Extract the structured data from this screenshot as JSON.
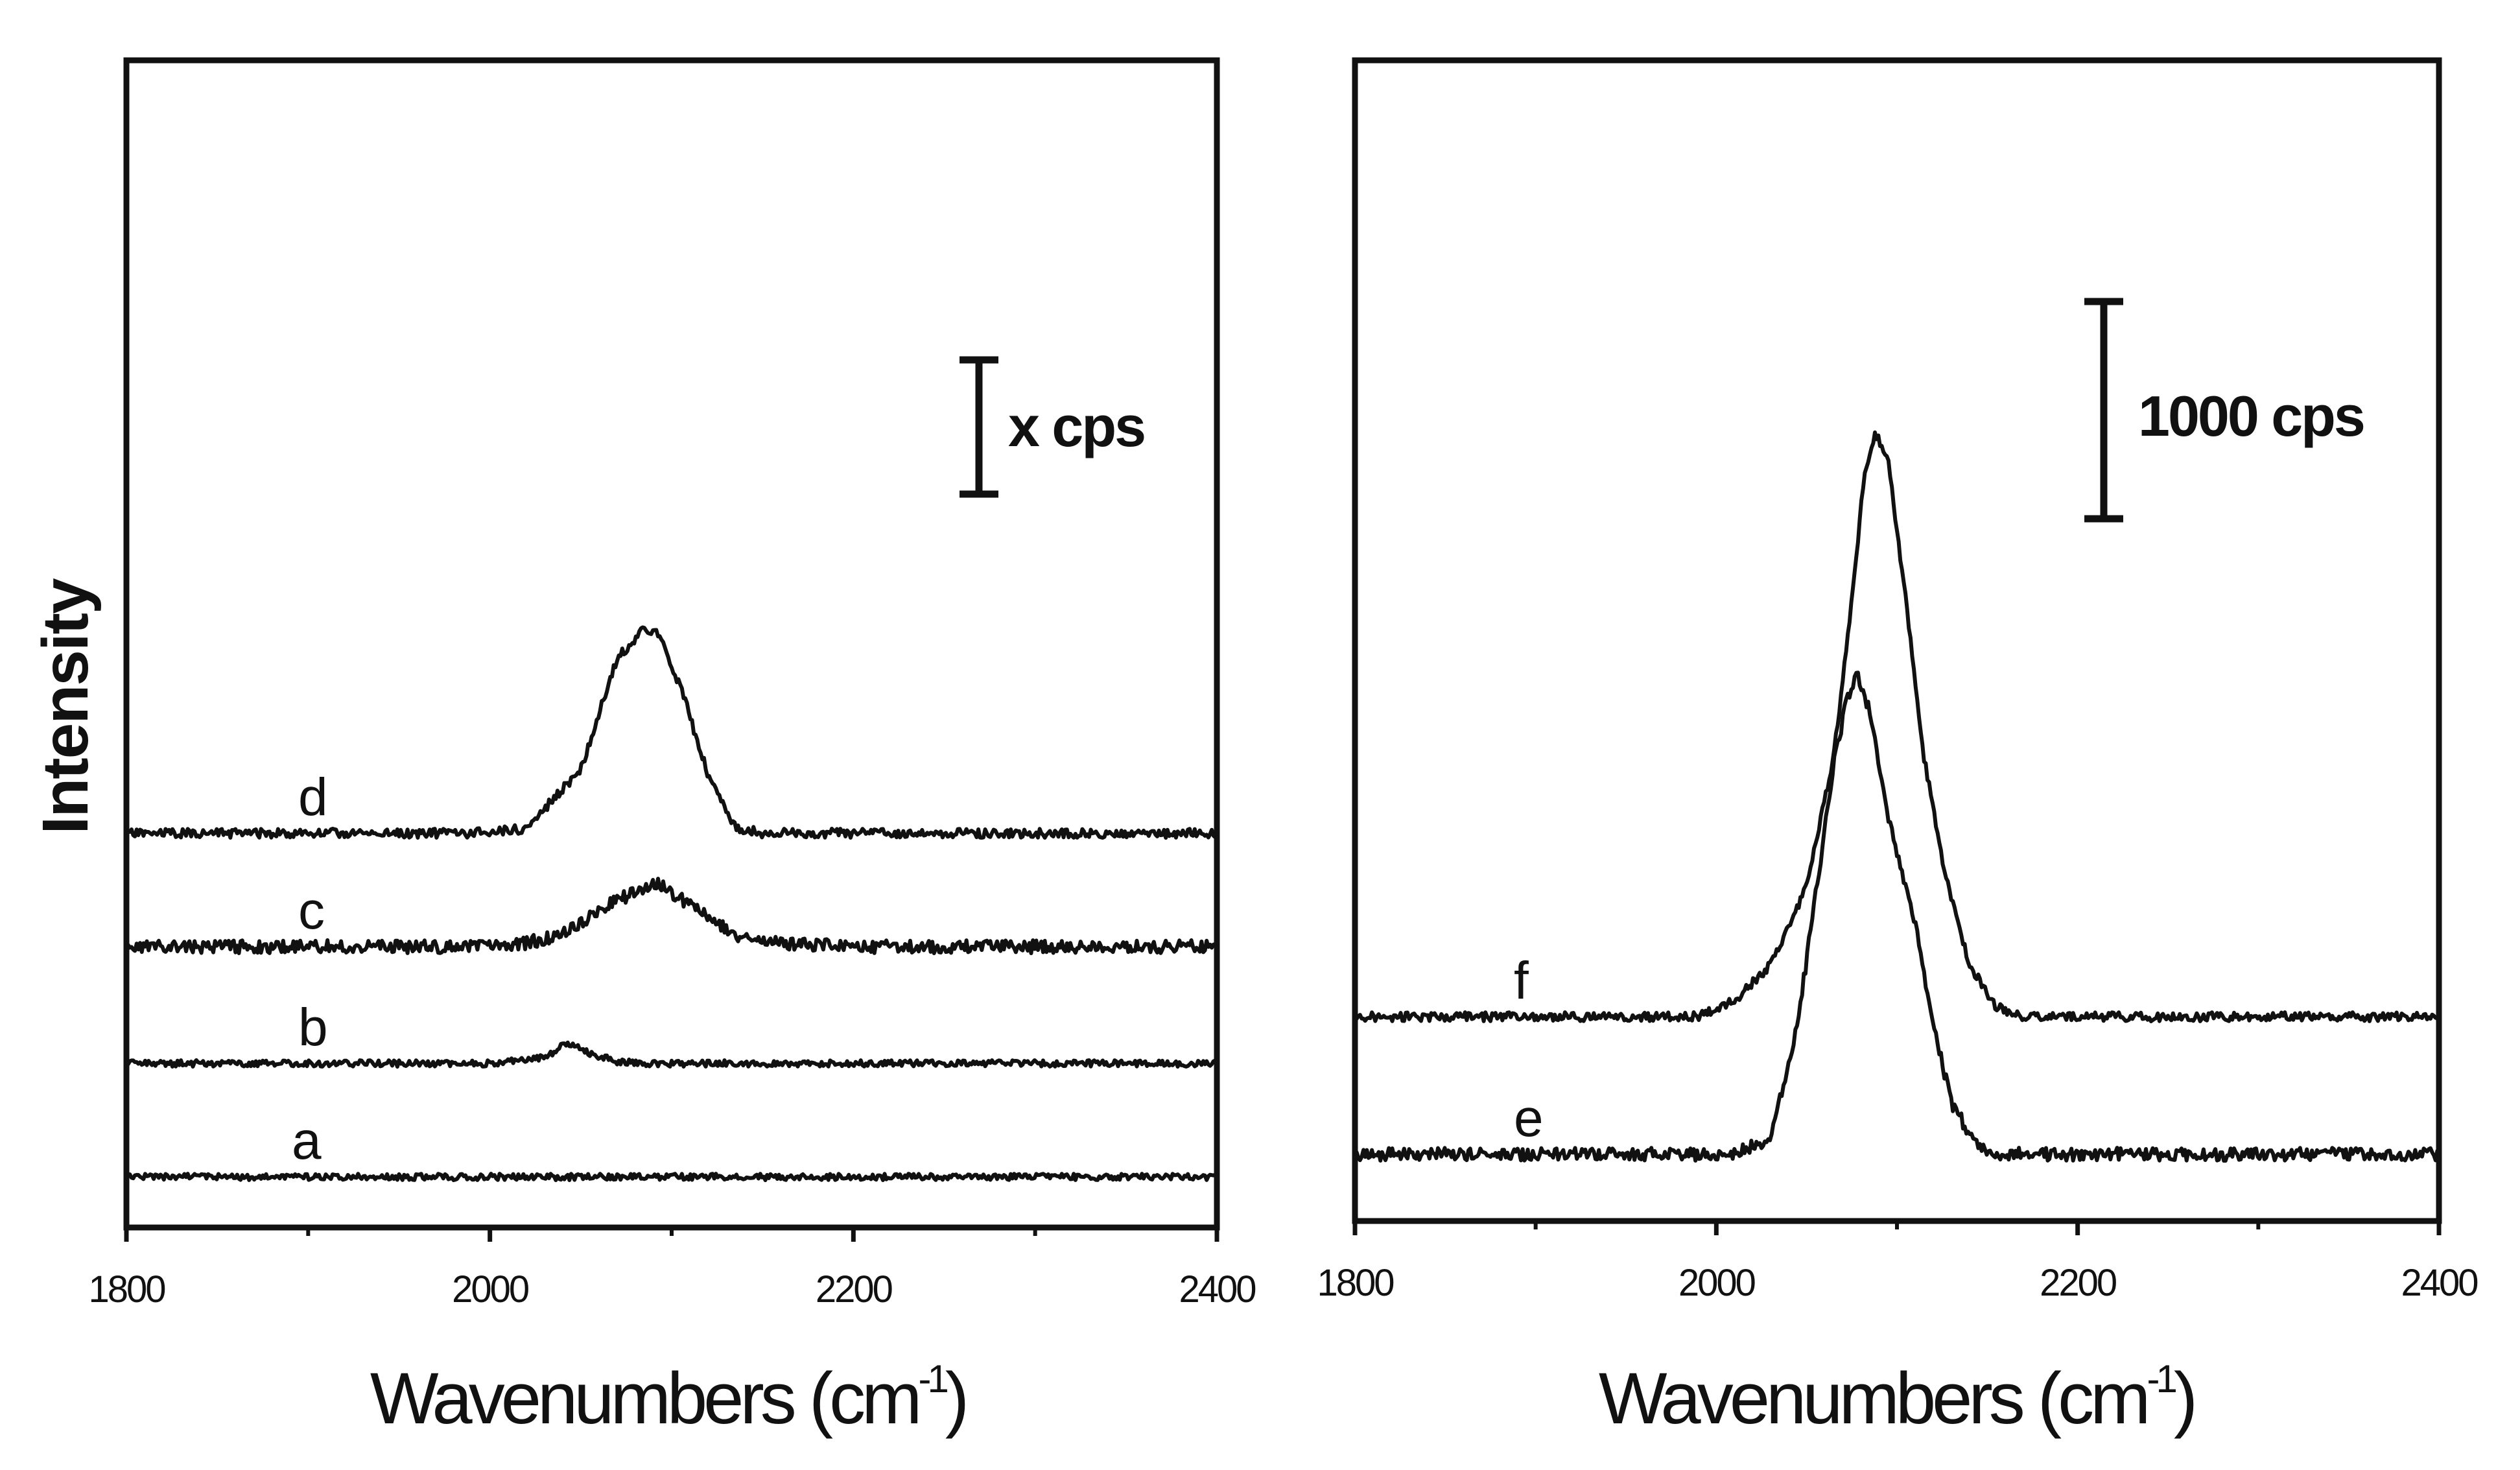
{
  "chart_data": [
    {
      "type": "line",
      "panel": "left",
      "xlabel": "Wavenumbers (cm-1)",
      "xlabel_parts": {
        "main": "Wavenumbers (cm",
        "sup": "-1",
        "close": ")"
      },
      "ylabel": "Intensity",
      "xlim": [
        1800,
        2400
      ],
      "xticks": [
        "1800",
        "2000",
        "2200",
        "2400"
      ],
      "scale_bar": {
        "label": "x cps"
      },
      "series": [
        {
          "name": "d",
          "points": [
            [
              1800,
              0
            ],
            [
              1990,
              0
            ],
            [
              2020,
              8
            ],
            [
              2050,
              110
            ],
            [
              2070,
              300
            ],
            [
              2085,
              350
            ],
            [
              2092,
              345
            ],
            [
              2105,
              250
            ],
            [
              2120,
              100
            ],
            [
              2135,
              10
            ],
            [
              2150,
              0
            ],
            [
              2400,
              0
            ]
          ]
        },
        {
          "name": "c",
          "points": [
            [
              1800,
              0
            ],
            [
              2010,
              0
            ],
            [
              2040,
              20
            ],
            [
              2070,
              80
            ],
            [
              2092,
              110
            ],
            [
              2110,
              70
            ],
            [
              2135,
              20
            ],
            [
              2160,
              5
            ],
            [
              2200,
              0
            ],
            [
              2400,
              0
            ]
          ]
        },
        {
          "name": "b",
          "points": [
            [
              1800,
              0
            ],
            [
              2000,
              0
            ],
            [
              2030,
              10
            ],
            [
              2042,
              34
            ],
            [
              2055,
              18
            ],
            [
              2070,
              3
            ],
            [
              2085,
              0
            ],
            [
              2400,
              0
            ]
          ]
        },
        {
          "name": "a",
          "points": [
            [
              1800,
              0
            ],
            [
              2400,
              0
            ]
          ]
        }
      ]
    },
    {
      "type": "line",
      "panel": "right",
      "xlabel": "Wavenumbers (cm-1)",
      "xlabel_parts": {
        "main": "Wavenumbers (cm",
        "sup": "-1",
        "close": ")"
      },
      "xlim": [
        1800,
        2400
      ],
      "xticks": [
        "1800",
        "2000",
        "2200",
        "2400"
      ],
      "scale_bar": {
        "label": "1000 cps"
      },
      "series": [
        {
          "name": "f",
          "points": [
            [
              1800,
              0
            ],
            [
              1990,
              0
            ],
            [
              2010,
              60
            ],
            [
              2030,
              200
            ],
            [
              2050,
              500
            ],
            [
              2065,
              1000
            ],
            [
              2075,
              1600
            ],
            [
              2082,
              2100
            ],
            [
              2088,
              2250
            ],
            [
              2095,
              2150
            ],
            [
              2105,
              1600
            ],
            [
              2115,
              1000
            ],
            [
              2125,
              600
            ],
            [
              2140,
              200
            ],
            [
              2155,
              40
            ],
            [
              2170,
              0
            ],
            [
              2400,
              0
            ]
          ]
        },
        {
          "name": "e",
          "points": [
            [
              1800,
              0
            ],
            [
              2010,
              0
            ],
            [
              2030,
              60
            ],
            [
              2045,
              500
            ],
            [
              2055,
              1000
            ],
            [
              2065,
              1500
            ],
            [
              2072,
              1750
            ],
            [
              2078,
              1850
            ],
            [
              2085,
              1700
            ],
            [
              2095,
              1300
            ],
            [
              2110,
              900
            ],
            [
              2120,
              500
            ],
            [
              2130,
              200
            ],
            [
              2145,
              20
            ],
            [
              2160,
              0
            ],
            [
              2400,
              0
            ]
          ]
        }
      ]
    }
  ]
}
